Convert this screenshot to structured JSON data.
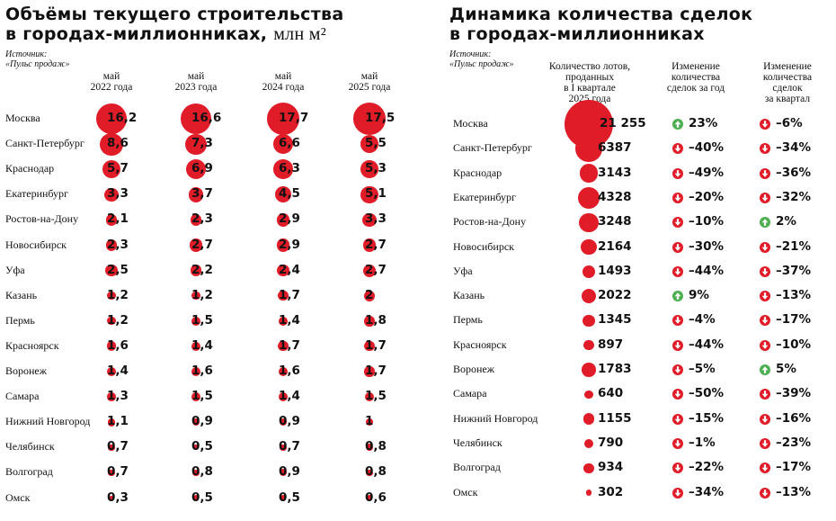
{
  "left": {
    "title_line1": "Объёмы текущего строительства",
    "title_line2": "в городах-миллионниках,",
    "title_unit": "млн м²",
    "source_label": "Источник:",
    "source_name": "«Пульс продаж»",
    "column_headers": [
      [
        "май",
        "2022 года"
      ],
      [
        "май",
        "2023 года"
      ],
      [
        "май",
        "2024 года"
      ],
      [
        "май",
        "2025 года"
      ]
    ]
  },
  "right": {
    "title_line1": "Динамика количества сделок",
    "title_line2": "в городах-миллионниках",
    "source_label": "Источник:",
    "source_name": "«Пульс продаж»",
    "column_headers": [
      [
        "Количество лотов,",
        "проданных",
        "в I квартале",
        "2025 года"
      ],
      [
        "Изменение",
        "количества",
        "сделок за год"
      ],
      [
        "Изменение",
        "количества",
        "сделок",
        "за квартал"
      ]
    ]
  },
  "colors": {
    "bubble": "#e01c28",
    "arrow_down": "#e01c28",
    "arrow_up": "#4caf50"
  },
  "chart_data": [
    {
      "type": "scatter",
      "title": "Объёмы текущего строительства в городах-миллионниках, млн м²",
      "categories": [
        "Москва",
        "Санкт-Петербург",
        "Краснодар",
        "Екатеринбург",
        "Ростов-на-Дону",
        "Новосибирск",
        "Уфа",
        "Казань",
        "Пермь",
        "Красноярск",
        "Воронеж",
        "Самара",
        "Нижний Новгород",
        "Челябинск",
        "Волгоград",
        "Омск"
      ],
      "series": [
        {
          "name": "май 2022 года",
          "labels": [
            "16,2",
            "8,6",
            "5,7",
            "3,3",
            "2,1",
            "2,3",
            "2,5",
            "1,2",
            "1,2",
            "1,6",
            "1,4",
            "1,3",
            "1,1",
            "0,7",
            "0,7",
            "0,3"
          ],
          "values": [
            16.2,
            8.6,
            5.7,
            3.3,
            2.1,
            2.3,
            2.5,
            1.2,
            1.2,
            1.6,
            1.4,
            1.3,
            1.1,
            0.7,
            0.7,
            0.3
          ]
        },
        {
          "name": "май 2023 года",
          "labels": [
            "16,6",
            "7,3",
            "6,9",
            "3,7",
            "2,3",
            "2,7",
            "2,2",
            "1,2",
            "1,5",
            "1,4",
            "1,6",
            "1,5",
            "0,9",
            "0,5",
            "0,8",
            "0,5"
          ],
          "values": [
            16.6,
            7.3,
            6.9,
            3.7,
            2.3,
            2.7,
            2.2,
            1.2,
            1.5,
            1.4,
            1.6,
            1.5,
            0.9,
            0.5,
            0.8,
            0.5
          ]
        },
        {
          "name": "май 2024 года",
          "labels": [
            "17,7",
            "6,6",
            "6,3",
            "4,5",
            "2,9",
            "2,9",
            "2,4",
            "1,7",
            "1,4",
            "1,7",
            "1,6",
            "1,4",
            "0,9",
            "0,7",
            "0,9",
            "0,5"
          ],
          "values": [
            17.7,
            6.6,
            6.3,
            4.5,
            2.9,
            2.9,
            2.4,
            1.7,
            1.4,
            1.7,
            1.6,
            1.4,
            0.9,
            0.7,
            0.9,
            0.5
          ]
        },
        {
          "name": "май 2025 года",
          "labels": [
            "17,5",
            "5,5",
            "5,3",
            "5,1",
            "3,3",
            "2,7",
            "2,7",
            "2",
            "1,8",
            "1,7",
            "1,7",
            "1,5",
            "1",
            "0,8",
            "0,8",
            "0,6"
          ],
          "values": [
            17.5,
            5.5,
            5.3,
            5.1,
            3.3,
            2.7,
            2.7,
            2.0,
            1.8,
            1.7,
            1.7,
            1.5,
            1.0,
            0.8,
            0.8,
            0.6
          ]
        }
      ]
    },
    {
      "type": "table",
      "title": "Динамика количества сделок в городах-миллионниках",
      "categories": [
        "Москва",
        "Санкт-Петербург",
        "Краснодар",
        "Екатеринбург",
        "Ростов-на-Дону",
        "Новосибирск",
        "Уфа",
        "Казань",
        "Пермь",
        "Красноярск",
        "Воронеж",
        "Самара",
        "Нижний Новгород",
        "Челябинск",
        "Волгоград",
        "Омск"
      ],
      "lots_labels": [
        "21 255",
        "6387",
        "3143",
        "4328",
        "3248",
        "2164",
        "1493",
        "2022",
        "1345",
        "897",
        "1783",
        "640",
        "1155",
        "790",
        "934",
        "302"
      ],
      "lots": [
        21255,
        6387,
        3143,
        4328,
        3248,
        2164,
        1493,
        2022,
        1345,
        897,
        1783,
        640,
        1155,
        790,
        934,
        302
      ],
      "yoy_labels": [
        "23%",
        "–40%",
        "–49%",
        "–20%",
        "–10%",
        "–30%",
        "–44%",
        "9%",
        "–4%",
        "–44%",
        "–5%",
        "–50%",
        "–15%",
        "–1%",
        "–22%",
        "–34%"
      ],
      "yoy": [
        23,
        -40,
        -49,
        -20,
        -10,
        -30,
        -44,
        9,
        -4,
        -44,
        -5,
        -50,
        -15,
        -1,
        -22,
        -34
      ],
      "qoq_labels": [
        "–6%",
        "–34%",
        "–36%",
        "–32%",
        "2%",
        "–21%",
        "–37%",
        "–13%",
        "–17%",
        "–10%",
        "5%",
        "–39%",
        "–16%",
        "–23%",
        "–17%",
        "–13%"
      ],
      "qoq": [
        -6,
        -34,
        -36,
        -32,
        2,
        -21,
        -37,
        -13,
        -17,
        -10,
        5,
        -39,
        -16,
        -23,
        -17,
        -13
      ]
    }
  ]
}
